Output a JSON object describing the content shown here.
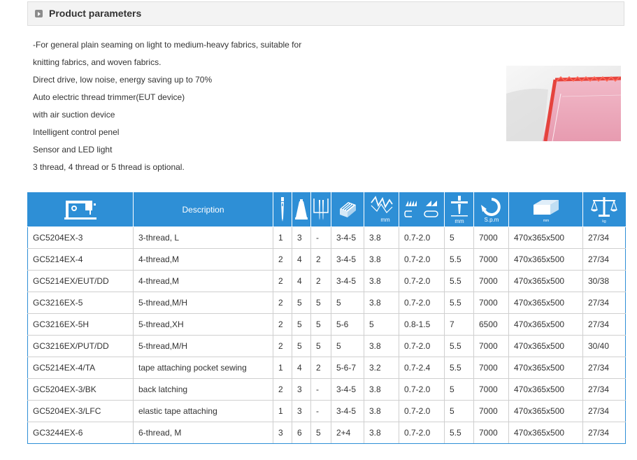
{
  "section": {
    "title": "Product parameters"
  },
  "features": [
    "-For general plain seaming on light to medium-heavy fabrics, suitable for",
    "knitting fabrics, and woven fabrics.",
    "Direct drive, low noise, energy saving up to 70%",
    "Auto electric thread trimmer(EUT device)",
    "with air suction device",
    "Intelligent control penel",
    "Sensor and LED light",
    "3 thread, 4 thread or 5 thread is optional."
  ],
  "table": {
    "header": {
      "description": "Description",
      "stitch_length_unit": "mm",
      "feed_ratio_sub": "",
      "needle_gauge_unit": "mm",
      "speed_unit": "S.p.m",
      "size_unit": "mm",
      "weight_unit": "kg"
    },
    "rows": [
      {
        "model": "GC5204EX-3",
        "description": "3-thread, L",
        "needles": "1",
        "threads": "3",
        "c3": "-",
        "c4": "3-4-5",
        "c5": "3.8",
        "c6": "0.7-2.0",
        "c7": "5",
        "speed": "7000",
        "size": "470x365x500",
        "weight": "27/34"
      },
      {
        "model": "GC5214EX-4",
        "description": "4-thread,M",
        "needles": "2",
        "threads": "4",
        "c3": "2",
        "c4": "3-4-5",
        "c5": "3.8",
        "c6": "0.7-2.0",
        "c7": "5.5",
        "speed": "7000",
        "size": "470x365x500",
        "weight": "27/34"
      },
      {
        "model": "GC5214EX/EUT/DD",
        "description": "4-thread,M",
        "needles": "2",
        "threads": "4",
        "c3": "2",
        "c4": "3-4-5",
        "c5": "3.8",
        "c6": "0.7-2.0",
        "c7": "5.5",
        "speed": "7000",
        "size": "470x365x500",
        "weight": "30/38"
      },
      {
        "model": "GC3216EX-5",
        "description": "5-thread,M/H",
        "needles": "2",
        "threads": "5",
        "c3": "5",
        "c4": "5",
        "c5": "3.8",
        "c6": "0.7-2.0",
        "c7": "5.5",
        "speed": "7000",
        "size": "470x365x500",
        "weight": "27/34"
      },
      {
        "model": "GC3216EX-5H",
        "description": "5-thread,XH",
        "needles": "2",
        "threads": "5",
        "c3": "5",
        "c4": "5-6",
        "c5": "5",
        "c6": "0.8-1.5",
        "c7": "7",
        "speed": "6500",
        "size": "470x365x500",
        "weight": "27/34"
      },
      {
        "model": "GC3216EX/PUT/DD",
        "description": "5-thread,M/H",
        "needles": "2",
        "threads": "5",
        "c3": "5",
        "c4": "5",
        "c5": "3.8",
        "c6": "0.7-2.0",
        "c7": "5.5",
        "speed": "7000",
        "size": "470x365x500",
        "weight": "30/40"
      },
      {
        "model": "GC5214EX-4/TA",
        "description": "tape attaching pocket sewing",
        "needles": "1",
        "threads": "4",
        "c3": "2",
        "c4": "5-6-7",
        "c5": "3.2",
        "c6": "0.7-2.4",
        "c7": "5.5",
        "speed": "7000",
        "size": "470x365x500",
        "weight": "27/34"
      },
      {
        "model": "GC5204EX-3/BK",
        "description": "back latching",
        "needles": "2",
        "threads": "3",
        "c3": "-",
        "c4": "3-4-5",
        "c5": "3.8",
        "c6": "0.7-2.0",
        "c7": "5",
        "speed": "7000",
        "size": "470x365x500",
        "weight": "27/34"
      },
      {
        "model": "GC5204EX-3/LFC",
        "description": "elastic tape attaching",
        "needles": "1",
        "threads": "3",
        "c3": "-",
        "c4": "3-4-5",
        "c5": "3.8",
        "c6": "0.7-2.0",
        "c7": "5",
        "speed": "7000",
        "size": "470x365x500",
        "weight": "27/34"
      },
      {
        "model": "GC3244EX-6",
        "description": "6-thread, M",
        "needles": "3",
        "threads": "6",
        "c3": "5",
        "c4": "2+4",
        "c5": "3.8",
        "c6": "0.7-2.0",
        "c7": "5.5",
        "speed": "7000",
        "size": "470x365x500",
        "weight": "27/34"
      }
    ]
  },
  "colors": {
    "header_blue": "#2e8fd6",
    "seam_pink": "#e9a3b8",
    "seam_red": "#e5433d"
  },
  "icons": [
    "sewing-machine-icon",
    "needle-icon",
    "thread-cone-icon",
    "two-needles-icon",
    "feed-dog-icon",
    "stitch-length-icon",
    "differential-feed-icon",
    "needle-gauge-icon",
    "speed-icon",
    "box-size-icon",
    "scale-weight-icon"
  ]
}
